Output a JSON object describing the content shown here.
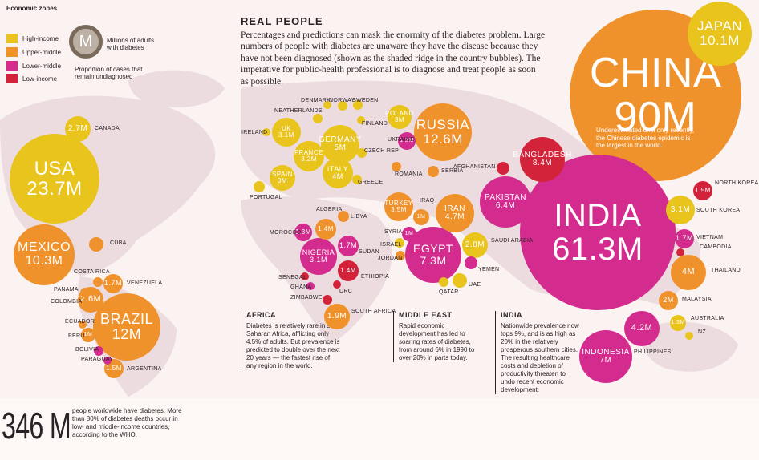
{
  "legend": {
    "title": "Economic zones",
    "items": [
      {
        "label": "High-income",
        "color": "#e8c41c"
      },
      {
        "label": "Upper-middle",
        "color": "#f0922c"
      },
      {
        "label": "Lower-middle",
        "color": "#d42c8e"
      },
      {
        "label": "Low-income",
        "color": "#d2233a"
      }
    ],
    "key_letter": "M",
    "key_millions": "Millions of adults with diabetes",
    "key_undiagnosed": "Proportion of cases that remain undiagnosed"
  },
  "header": {
    "title": "REAL PEOPLE",
    "body": "Percentages and predictions can mask the enormity of the diabetes problem. Large numbers of people with diabetes are unaware they have the disease because they have not been diagnosed (shown as the shaded ridge in the country bubbles). The imperative for public-health professional is to diagnose and treat people as soon as possible."
  },
  "china_note": "Underestimated until only recently, the Chinese diabetes epidemic is the largest in the world.",
  "bubbles": [
    {
      "id": "china",
      "name": "CHINA",
      "value": "90M",
      "zone": "upper"
    },
    {
      "id": "india",
      "name": "INDIA",
      "value": "61.3M",
      "zone": "lower"
    },
    {
      "id": "usa",
      "name": "USA",
      "value": "23.7M",
      "zone": "high"
    },
    {
      "id": "russia",
      "name": "RUSSIA",
      "value": "12.6M",
      "zone": "upper"
    },
    {
      "id": "brazil",
      "name": "BRAZIL",
      "value": "12M",
      "zone": "upper"
    },
    {
      "id": "mexico",
      "name": "MEXICO",
      "value": "10.3M",
      "zone": "upper"
    },
    {
      "id": "japan",
      "name": "JAPAN",
      "value": "10.1M",
      "zone": "high"
    },
    {
      "id": "bangladesh",
      "name": "BANGLADESH",
      "value": "8.4M",
      "zone": "low"
    },
    {
      "id": "egypt",
      "name": "EGYPT",
      "value": "7.3M",
      "zone": "lower"
    },
    {
      "id": "indonesia",
      "name": "INDONESIA",
      "value": "7M",
      "zone": "lower"
    },
    {
      "id": "pakistan",
      "name": "PAKISTAN",
      "value": "6.4M",
      "zone": "lower"
    },
    {
      "id": "germany",
      "name": "GERMANY",
      "value": "5M",
      "zone": "high"
    },
    {
      "id": "iran",
      "name": "IRAN",
      "value": "4.7M",
      "zone": "upper"
    },
    {
      "id": "philippines",
      "name": "",
      "value": "4.2M",
      "zone": "lower"
    },
    {
      "id": "italy",
      "name": "ITALY",
      "value": "4M",
      "zone": "high"
    },
    {
      "id": "thailand",
      "name": "",
      "value": "4M",
      "zone": "upper"
    },
    {
      "id": "turkey",
      "name": "TURKEY",
      "value": "3.5M",
      "zone": "upper"
    },
    {
      "id": "france",
      "name": "FRANCE",
      "value": "3.2M",
      "zone": "high"
    },
    {
      "id": "uk",
      "name": "UK",
      "value": "3.1M",
      "zone": "high"
    },
    {
      "id": "nigeria",
      "name": "NIGERIA",
      "value": "3.1M",
      "zone": "lower"
    },
    {
      "id": "southkorea",
      "name": "",
      "value": "3.1M",
      "zone": "high"
    },
    {
      "id": "spain",
      "name": "SPAIN",
      "value": "3M",
      "zone": "high"
    },
    {
      "id": "poland",
      "name": "POLAND",
      "value": "3M",
      "zone": "high"
    },
    {
      "id": "saudi",
      "name": "",
      "value": "2.8M",
      "zone": "high"
    },
    {
      "id": "canada",
      "name": "",
      "value": "2.7M",
      "zone": "high"
    },
    {
      "id": "colombia",
      "name": "",
      "value": "2.6M",
      "zone": "upper"
    },
    {
      "id": "malaysia",
      "name": "",
      "value": "2M",
      "zone": "upper"
    },
    {
      "id": "southafrica",
      "name": "",
      "value": "1.9M",
      "zone": "upper"
    },
    {
      "id": "venezuela",
      "name": "",
      "value": "1.7M",
      "zone": "upper"
    },
    {
      "id": "sudan",
      "name": "",
      "value": "1.7M",
      "zone": "lower"
    },
    {
      "id": "vietnam",
      "name": "",
      "value": "1.7M",
      "zone": "lower"
    },
    {
      "id": "northkorea",
      "name": "",
      "value": "1.5M",
      "zone": "low"
    },
    {
      "id": "argentina",
      "name": "",
      "value": "1.5M",
      "zone": "upper"
    },
    {
      "id": "algeria",
      "name": "",
      "value": "1.4M",
      "zone": "upper"
    },
    {
      "id": "ethiopia",
      "name": "",
      "value": "1.4M",
      "zone": "low"
    },
    {
      "id": "morocco",
      "name": "",
      "value": "1.3M",
      "zone": "lower"
    },
    {
      "id": "australia",
      "name": "",
      "value": "1.3M",
      "zone": "high"
    },
    {
      "id": "ukraine",
      "name": "",
      "value": "1.2M",
      "zone": "lower"
    },
    {
      "id": "peru",
      "name": "",
      "value": "1M",
      "zone": "upper"
    },
    {
      "id": "iraq",
      "name": "",
      "value": "1M",
      "zone": "upper"
    },
    {
      "id": "syria",
      "name": "",
      "value": "1M",
      "zone": "lower"
    }
  ],
  "small_bubbles": [
    {
      "id": "cuba",
      "zone": "upper"
    },
    {
      "id": "costarica",
      "zone": "upper"
    },
    {
      "id": "panama",
      "zone": "upper"
    },
    {
      "id": "ecuador",
      "zone": "upper"
    },
    {
      "id": "bolivia",
      "zone": "lower"
    },
    {
      "id": "paraguay",
      "zone": "lower"
    },
    {
      "id": "ireland",
      "zone": "high"
    },
    {
      "id": "portugal",
      "zone": "high"
    },
    {
      "id": "netherlands",
      "zone": "high"
    },
    {
      "id": "denmark",
      "zone": "high"
    },
    {
      "id": "norway",
      "zone": "high"
    },
    {
      "id": "sweden",
      "zone": "high"
    },
    {
      "id": "finland",
      "zone": "high"
    },
    {
      "id": "czech",
      "zone": "high"
    },
    {
      "id": "greece",
      "zone": "high"
    },
    {
      "id": "romania",
      "zone": "upper"
    },
    {
      "id": "serbia",
      "zone": "upper"
    },
    {
      "id": "afghanistan",
      "zone": "low"
    },
    {
      "id": "libya",
      "zone": "upper"
    },
    {
      "id": "senegal",
      "zone": "low"
    },
    {
      "id": "ghana",
      "zone": "lower"
    },
    {
      "id": "zimbabwe",
      "zone": "low"
    },
    {
      "id": "drc",
      "zone": "low"
    },
    {
      "id": "israel",
      "zone": "high"
    },
    {
      "id": "jordan",
      "zone": "upper"
    },
    {
      "id": "qatar",
      "zone": "high"
    },
    {
      "id": "uae",
      "zone": "high"
    },
    {
      "id": "yemen",
      "zone": "lower"
    },
    {
      "id": "cambodia",
      "zone": "low"
    },
    {
      "id": "nz",
      "zone": "high"
    }
  ],
  "labels": {
    "canada": "CANADA",
    "cuba": "CUBA",
    "costarica": "COSTA RICA",
    "panama": "PANAMA",
    "colombia": "COLOMBIA",
    "venezuela": "VENEZUELA",
    "ecuador": "ECUADOR",
    "peru": "PERU",
    "bolivia": "BOLIVIA",
    "paraguay": "PARAGUAY",
    "argentina": "ARGENTINA",
    "ireland": "IRELAND",
    "portugal": "PORTUGAL",
    "netherlands": "NEATHERLANDS",
    "denmark": "DENMARK",
    "norway": "NORWAY",
    "sweden": "SWEDEN",
    "finland": "FINLAND",
    "czech": "CZECH REP",
    "greece": "GREECE",
    "ukraine": "UKRAINE",
    "romania": "ROMANIA",
    "serbia": "SERBIA",
    "afghanistan": "AFGHANISTAN",
    "algeria": "ALGERIA",
    "libya": "LIBYA",
    "morocco": "MOROCCO",
    "sudan": "SUDAN",
    "senegal": "SENEGAL",
    "ghana": "GHANA",
    "ethiopia": "ETHIOPIA",
    "drc": "DRC",
    "zimbabwe": "ZIMBABWE",
    "southafrica": "SOUTH AFRICA",
    "iraq": "IRAQ",
    "syria": "SYRIA",
    "israel": "ISRAEL",
    "jordan": "JORDAN",
    "saudi": "SAUDI ARABIA",
    "qatar": "QATAR",
    "uae": "UAE",
    "yemen": "YEMEN",
    "northkorea": "NORTH KOREA",
    "southkorea": "SOUTH KOREA",
    "vietnam": "VIETNAM",
    "cambodia": "CAMBODIA",
    "thailand": "THAILAND",
    "malaysia": "MALAYSIA",
    "philippines": "PHILIPPINES",
    "australia": "AUSTRALIA",
    "nz": "NZ"
  },
  "panels": {
    "africa": {
      "title": "AFRICA",
      "text": "Diabetes is relatively rare in sub-Saharan Africa, afflicting only 4.5% of adults. But prevalence is predicted to double over the next 20 years — the fastest rise of any region in the world."
    },
    "middle_east": {
      "title": "MIDDLE EAST",
      "text": "Rapid economic development has led to soaring rates of diabetes, from around 6% in 1990 to over 20% in parts today."
    },
    "india": {
      "title": "INDIA",
      "text": "Nationwide prevalence now tops 9%, and is as high as 20% in the relatively prosperous southern cities. The resulting healthcare costs and depletion of productivity threaten to undo recent economic development."
    }
  },
  "footer": {
    "big": "346 M",
    "text": "people worldwide have diabetes. More than 80% of diabetes deaths occur in low- and middle-income countries, according to the WHO."
  },
  "colors": {
    "high": "#e8c41c",
    "upper": "#f0922c",
    "lower": "#d42c8e",
    "low": "#d2233a",
    "map": "#ecdce0",
    "bg": "#fbf3f1"
  }
}
